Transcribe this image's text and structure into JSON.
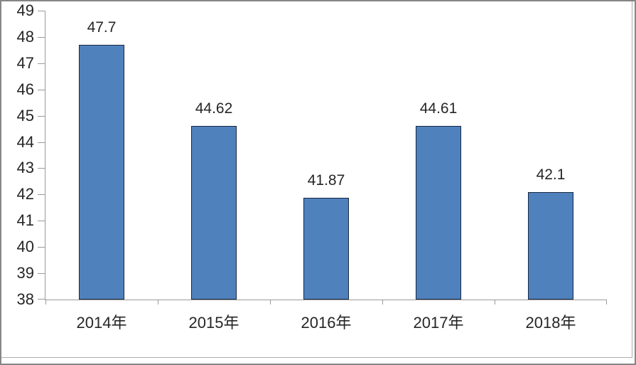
{
  "chart_data": {
    "type": "bar",
    "title": "",
    "xlabel": "",
    "ylabel": "",
    "categories": [
      "2014年",
      "2015年",
      "2016年",
      "2017年",
      "2018年"
    ],
    "values": [
      47.7,
      44.62,
      41.87,
      44.61,
      42.1
    ],
    "data_labels": [
      "47.7",
      "44.62",
      "41.87",
      "44.61",
      "42.1"
    ],
    "series": [
      {
        "name": "",
        "values": [
          47.7,
          44.62,
          41.87,
          44.61,
          42.1
        ]
      }
    ],
    "y_axis": {
      "min": 38,
      "max": 49,
      "step": 1,
      "tick_labels": [
        "49",
        "48",
        "47",
        "46",
        "45",
        "44",
        "43",
        "42",
        "41",
        "40",
        "39",
        "38"
      ]
    },
    "x_axis": {
      "tick_labels": [
        "2014年",
        "2015年",
        "2016年",
        "2017年",
        "2018年"
      ]
    },
    "legend": "none",
    "grid": false,
    "colors": {
      "bar_fill": "#4f81bd",
      "bar_border": "#1a2740",
      "axis": "#9b9b9b",
      "text": "#262626",
      "frame": "#868686",
      "inner_border": "#adadad",
      "background": "#ffffff"
    }
  }
}
